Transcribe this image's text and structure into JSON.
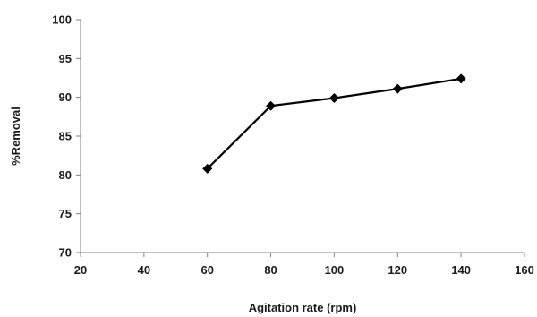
{
  "chart_data": {
    "type": "line",
    "title": "",
    "xlabel": "Agitation rate (rpm)",
    "ylabel": "%Removal",
    "xlim": [
      20,
      160
    ],
    "ylim": [
      70,
      100
    ],
    "x_ticks": [
      20,
      40,
      60,
      80,
      100,
      120,
      140,
      160
    ],
    "y_ticks": [
      70,
      75,
      80,
      85,
      90,
      95,
      100
    ],
    "grid": false,
    "legend": "none",
    "marker": "diamond",
    "line_color": "#000000",
    "series": [
      {
        "x": [
          60,
          80,
          100,
          120,
          140
        ],
        "values": [
          80.8,
          88.9,
          89.9,
          91.1,
          92.4
        ]
      }
    ]
  }
}
